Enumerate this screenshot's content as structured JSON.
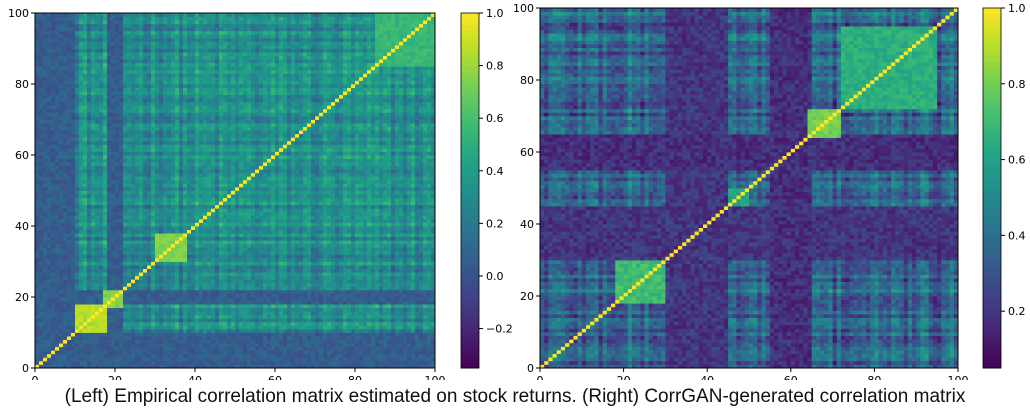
{
  "caption": "(Left) Empirical correlation matrix estimated on stock returns. (Right) CorrGAN-generated correlation matrix",
  "chart_data": [
    {
      "type": "heatmap",
      "title": "",
      "xlabel": "",
      "ylabel": "",
      "n": 100,
      "xlim": [
        0,
        100
      ],
      "ylim": [
        0,
        100
      ],
      "xticks": [
        "0",
        "20",
        "40",
        "60",
        "80",
        "100"
      ],
      "yticks": [
        "0",
        "20",
        "40",
        "60",
        "80",
        "100"
      ],
      "colormap": "viridis",
      "vmin": -0.35,
      "vmax": 1.0,
      "colorbar_ticks": [
        "1.0",
        "0.8",
        "0.6",
        "0.4",
        "0.2",
        "0.0",
        "−0.2"
      ],
      "colorbar_tick_values": [
        1.0,
        0.8,
        0.6,
        0.4,
        0.2,
        0.0,
        -0.2
      ],
      "diagonal_value": 1.0,
      "background_correlation": 0.3,
      "cluster_blocks": [
        {
          "range": [
            10,
            18
          ],
          "value": 0.85
        },
        {
          "range": [
            17,
            22
          ],
          "value": 0.75
        },
        {
          "range": [
            30,
            38
          ],
          "value": 0.75
        },
        {
          "range": [
            85,
            100
          ],
          "value": 0.55
        }
      ],
      "low_correlation_bands": [
        {
          "range": [
            0,
            10
          ],
          "value": 0.05
        },
        {
          "range": [
            18,
            22
          ],
          "value": 0.05
        }
      ]
    },
    {
      "type": "heatmap",
      "title": "",
      "xlabel": "",
      "ylabel": "",
      "n": 100,
      "xlim": [
        0,
        100
      ],
      "ylim": [
        0,
        100
      ],
      "xticks": [
        "0",
        "20",
        "40",
        "60",
        "80",
        "100"
      ],
      "yticks": [
        "0",
        "20",
        "40",
        "60",
        "80",
        "100"
      ],
      "colormap": "viridis",
      "vmin": 0.05,
      "vmax": 1.0,
      "colorbar_ticks": [
        "1.0",
        "0.8",
        "0.6",
        "0.4",
        "0.2"
      ],
      "colorbar_tick_values": [
        1.0,
        0.8,
        0.6,
        0.4,
        0.2
      ],
      "diagonal_value": 1.0,
      "background_correlation": 0.35,
      "cluster_blocks": [
        {
          "range": [
            18,
            30
          ],
          "value": 0.7
        },
        {
          "range": [
            45,
            50
          ],
          "value": 0.6
        },
        {
          "range": [
            64,
            72
          ],
          "value": 0.8
        },
        {
          "range": [
            72,
            95
          ],
          "value": 0.65
        }
      ],
      "low_correlation_bands": [
        {
          "range": [
            30,
            45
          ],
          "value": 0.2
        },
        {
          "range": [
            55,
            65
          ],
          "value": 0.18
        }
      ]
    }
  ]
}
